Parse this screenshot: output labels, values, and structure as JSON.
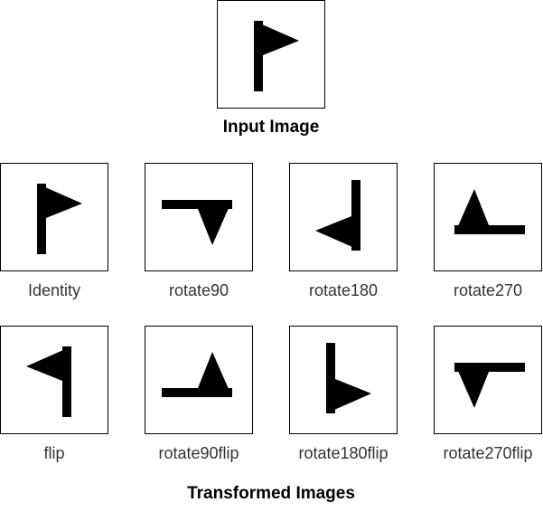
{
  "input": {
    "heading": "Input Image",
    "icon": "flag-icon",
    "transform": "identity"
  },
  "transformed": {
    "heading": "Transformed Images",
    "items": [
      {
        "label": "Identity",
        "transform": "identity"
      },
      {
        "label": "rotate90",
        "transform": "rotate90"
      },
      {
        "label": "rotate180",
        "transform": "rotate180"
      },
      {
        "label": "rotate270",
        "transform": "rotate270"
      },
      {
        "label": "flip",
        "transform": "flip"
      },
      {
        "label": "rotate90flip",
        "transform": "rotate90flip"
      },
      {
        "label": "rotate180flip",
        "transform": "rotate180flip"
      },
      {
        "label": "rotate270flip",
        "transform": "rotate270flip"
      }
    ]
  },
  "colors": {
    "shape": "#000000",
    "border": "#000000",
    "label": "#333333",
    "background": "#ffffff"
  }
}
